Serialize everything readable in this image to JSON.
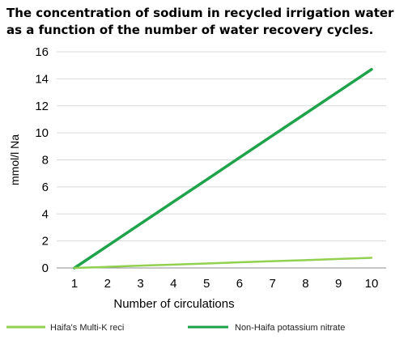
{
  "chart_data": {
    "type": "line",
    "title_lines": [
      "The concentration of sodium in recycled irrigation water",
      "as a function of the number of water recovery cycles."
    ],
    "xlabel": "Number of circulations",
    "ylabel": "mmol/l Na",
    "x": [
      1,
      2,
      3,
      4,
      5,
      6,
      7,
      8,
      9,
      10
    ],
    "xlim": [
      1,
      10
    ],
    "ylim": [
      0,
      16
    ],
    "y_ticks": [
      0,
      2,
      4,
      6,
      8,
      10,
      12,
      14,
      16
    ],
    "grid": "horizontal",
    "legend_position": "bottom",
    "series": [
      {
        "name": "Haifa's Multi-K reci",
        "color": "#92d050",
        "values": [
          0.0,
          0.08,
          0.17,
          0.25,
          0.33,
          0.42,
          0.5,
          0.58,
          0.67,
          0.75
        ]
      },
      {
        "name": "Non-Haifa potassium nitrate",
        "color": "#1ea34a",
        "values": [
          0.0,
          1.63,
          3.27,
          4.9,
          6.53,
          8.17,
          9.8,
          11.43,
          13.07,
          14.7
        ]
      }
    ]
  }
}
